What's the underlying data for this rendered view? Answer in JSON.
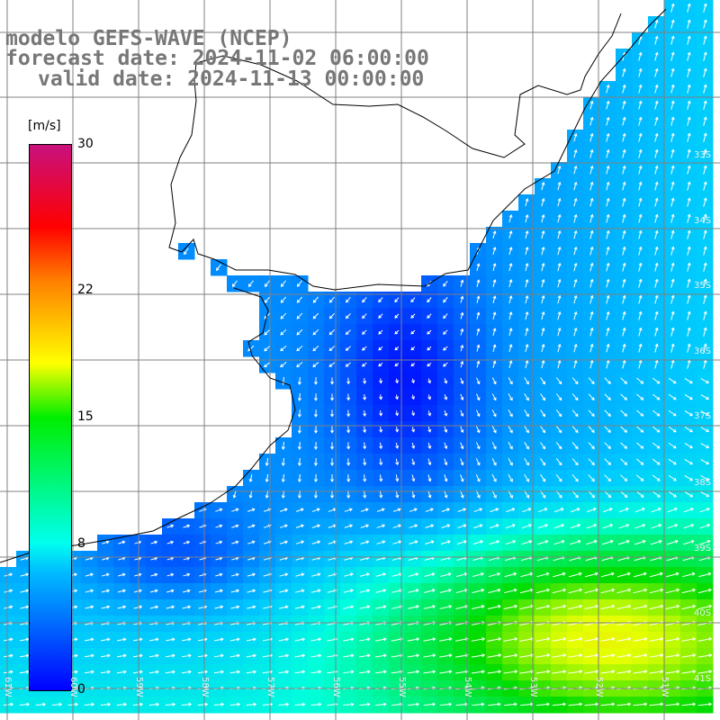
{
  "title": {
    "line1": "modelo GEFS-WAVE (NCEP)",
    "line2": "forecast date: 2024-11-02 06:00:00",
    "line3": "valid date: 2024-11-13 00:00:00"
  },
  "legend": {
    "unit": "[m/s]",
    "min": 0,
    "max": 30,
    "ticks": [
      {
        "value": 30,
        "label": "30"
      },
      {
        "value": 22,
        "label": "22"
      },
      {
        "value": 15,
        "label": "15"
      },
      {
        "value": 8,
        "label": "8"
      },
      {
        "value": 0,
        "label": "0"
      }
    ]
  },
  "grid": {
    "lat_labels": [
      "33S",
      "34S",
      "35S",
      "36S",
      "37S",
      "38S",
      "39S",
      "40S",
      "41S"
    ],
    "lon_labels": [
      "61W",
      "60W",
      "59W",
      "58W",
      "57W",
      "56W",
      "55W",
      "54W",
      "53W",
      "52W",
      "51W"
    ]
  },
  "colors": {
    "land": "#ffffff",
    "coast": "#000000",
    "grid": "#7f7f7f",
    "arrow": "#ffffff",
    "title": "#777777"
  }
}
